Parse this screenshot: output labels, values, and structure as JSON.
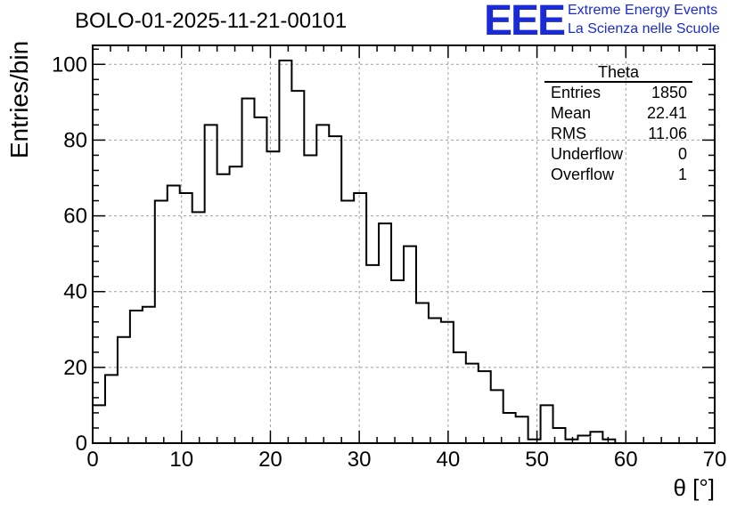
{
  "chart_data": {
    "type": "histogram",
    "title": "BOLO-01-2025-11-21-00101",
    "xlabel": "θ [°]",
    "ylabel": "Entries/bin",
    "xlim": [
      0,
      70
    ],
    "ylim": [
      0,
      105
    ],
    "bin_width": 1.4,
    "grid": true,
    "x_ticks": [
      0,
      10,
      20,
      30,
      40,
      50,
      60,
      70
    ],
    "y_ticks": [
      0,
      20,
      40,
      60,
      80,
      100
    ],
    "counts": [
      10,
      18,
      28,
      35,
      36,
      64,
      68,
      66,
      61,
      84,
      71,
      73,
      91,
      86,
      77,
      101,
      93,
      76,
      84,
      81,
      64,
      66,
      47,
      58,
      43,
      52,
      37,
      33,
      32,
      24,
      21,
      19,
      14,
      8,
      7,
      1,
      10,
      4,
      1,
      2,
      3,
      1,
      0,
      0,
      0,
      0,
      0,
      0,
      0,
      0
    ],
    "line_color": "#000000"
  },
  "stats_box": {
    "name": "Theta",
    "rows": [
      {
        "label": "Entries",
        "value": "1850"
      },
      {
        "label": "Mean",
        "value": "22.41"
      },
      {
        "label": "RMS",
        "value": "11.06"
      },
      {
        "label": "Underflow",
        "value": "0"
      },
      {
        "label": "Overflow",
        "value": "1"
      }
    ]
  },
  "branding": {
    "logo_text": "EEE",
    "line1": "Extreme Energy Events",
    "line2": "La Scienza nelle Scuole",
    "color": "#1a2bd6"
  }
}
